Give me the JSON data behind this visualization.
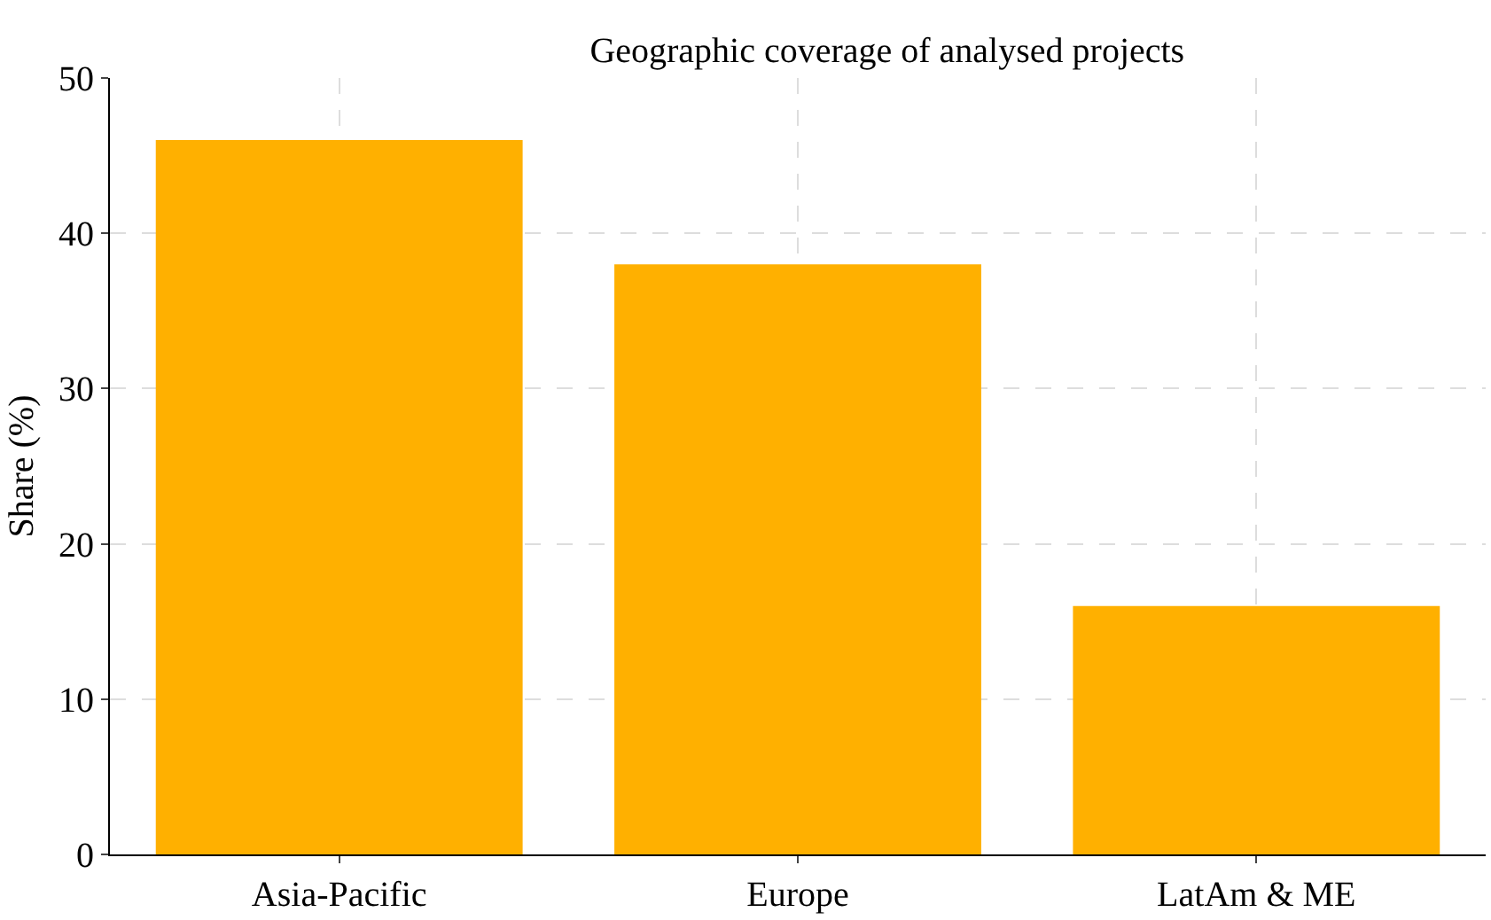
{
  "chart_data": {
    "type": "bar",
    "title": "Geographic coverage of analysed projects",
    "ylabel": "Share (%)",
    "categories": [
      "Asia-Pacific",
      "Europe",
      "LatAm & ME"
    ],
    "values": [
      46,
      38,
      16
    ],
    "color": "#ffb000",
    "ylim": [
      0,
      50
    ],
    "yticks": [
      0,
      10,
      20,
      30,
      40,
      50
    ],
    "grid": true
  }
}
